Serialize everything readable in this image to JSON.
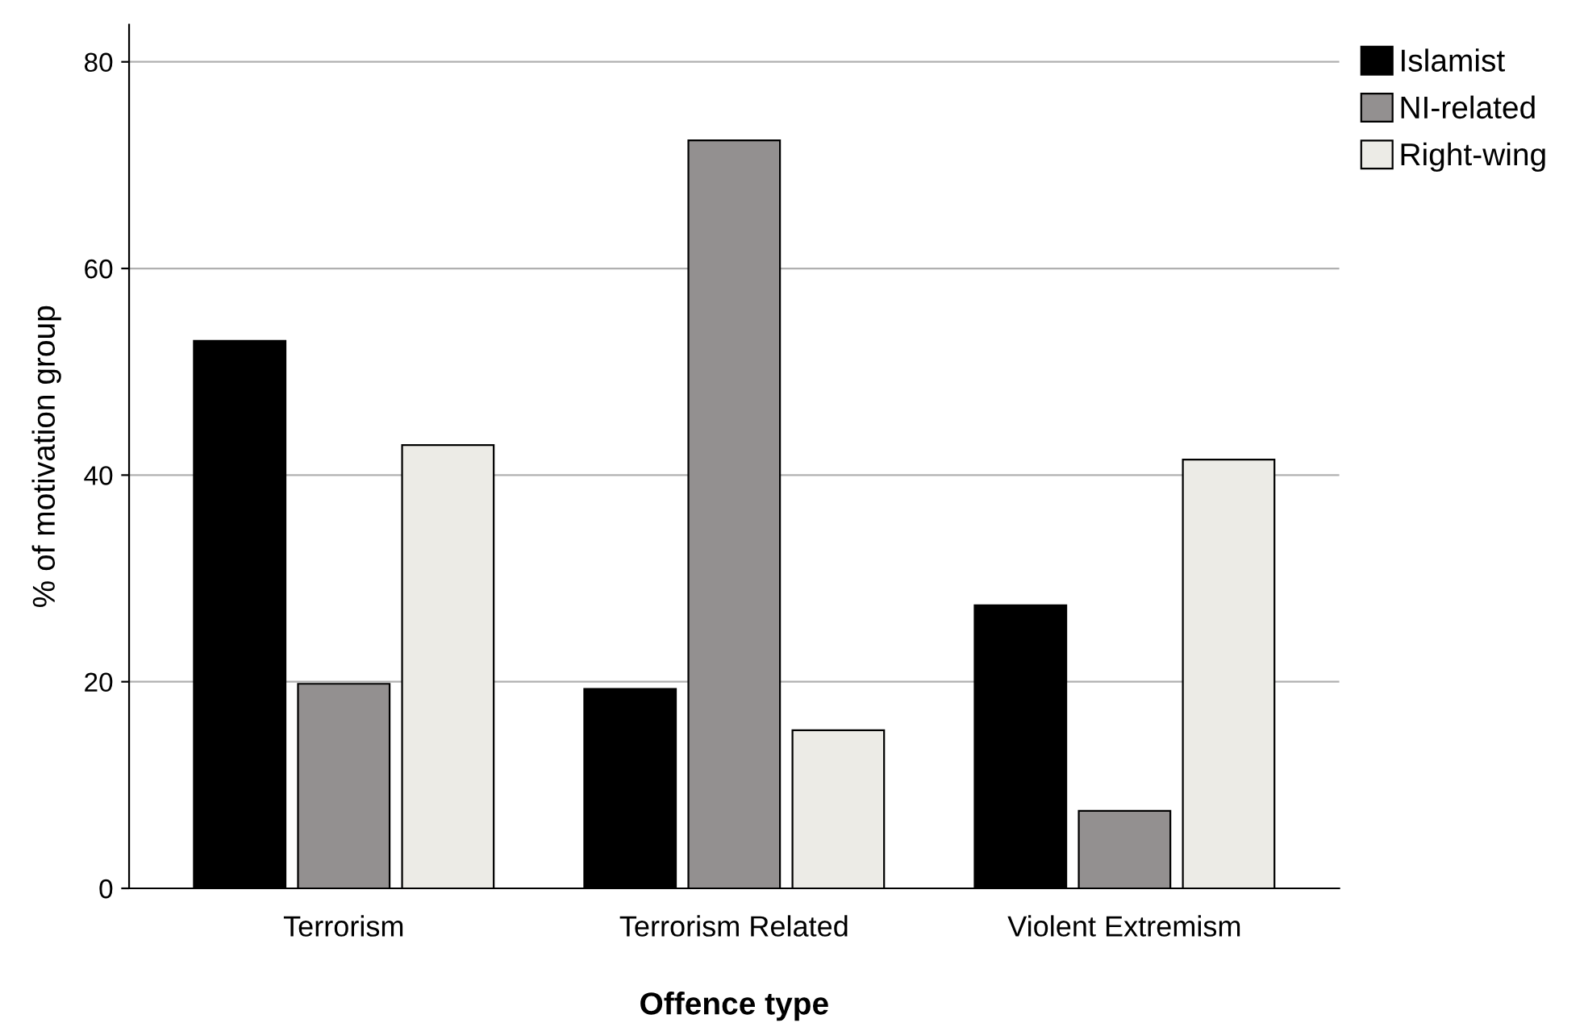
{
  "chart_data": {
    "type": "bar",
    "xlabel": "Offence type",
    "ylabel": "% of motivation group",
    "categories": [
      "Terrorism",
      "Terrorism Related",
      "Violent Extremism"
    ],
    "series": [
      {
        "name": "Islamist",
        "color": "#000000",
        "values": [
          53.0,
          19.3,
          27.4
        ]
      },
      {
        "name": "NI-related",
        "color": "#939090",
        "values": [
          19.8,
          72.4,
          7.5
        ]
      },
      {
        "name": "Right-wing",
        "color": "#ecebe6",
        "values": [
          42.9,
          15.3,
          41.5
        ]
      }
    ],
    "ylim": [
      0,
      83.6
    ],
    "yticks": [
      0,
      20,
      40,
      60,
      80
    ],
    "grid": "y",
    "legend": "top right"
  }
}
